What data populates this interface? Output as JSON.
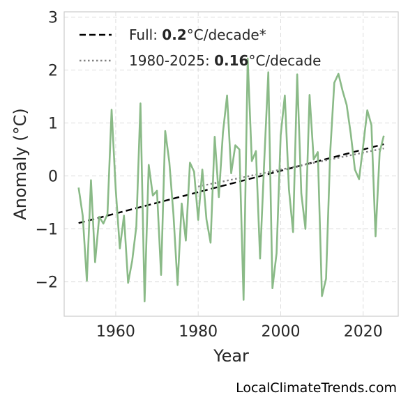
{
  "chart_data": {
    "type": "line",
    "x_range": [
      1951,
      2025
    ],
    "xlim": [
      1947.5,
      2028.5
    ],
    "ylim": [
      -2.65,
      3.1
    ],
    "xticks": [
      1960,
      1980,
      2000,
      2020
    ],
    "yticks": [
      -2,
      -1,
      0,
      1,
      2,
      3
    ],
    "ytick_labels": [
      "−2",
      "−1",
      "0",
      "1",
      "2",
      "3"
    ],
    "xlabel": "Year",
    "ylabel": "Anomaly (°C)",
    "grid": true,
    "legend_position": "top-left",
    "series": [
      {
        "values": [
          -0.22,
          -0.75,
          -1.98,
          -0.08,
          -1.63,
          -0.77,
          -0.9,
          -0.72,
          1.25,
          -0.25,
          -1.37,
          -0.75,
          -2.02,
          -1.6,
          -0.95,
          1.37,
          -2.37,
          0.21,
          -0.37,
          -0.28,
          -1.87,
          0.85,
          0.26,
          -0.73,
          -2.06,
          -0.52,
          -1.22,
          0.25,
          0.08,
          -0.83,
          0.12,
          -0.82,
          -1.26,
          0.74,
          -0.4,
          0.82,
          1.52,
          0.05,
          0.58,
          0.5,
          -2.34,
          2.22,
          0.28,
          0.47,
          -1.56,
          0.26,
          1.96,
          -2.12,
          -1.46,
          0.77,
          1.52,
          -0.25,
          -1.06,
          1.92,
          -0.33,
          -1.0,
          1.53,
          0.31,
          0.45,
          -2.27,
          -1.94,
          0.44,
          1.76,
          1.93,
          1.61,
          1.34,
          0.79,
          0.12,
          -0.06,
          0.57,
          1.24,
          0.96,
          -1.14,
          0.45,
          0.76
        ],
        "color": "#8aba87"
      }
    ],
    "trends": [
      {
        "label_prefix": "Full: ",
        "rate": "0.2",
        "label_suffix": "°C/decade*",
        "x": [
          1951,
          2025
        ],
        "y": [
          -0.89,
          0.6
        ],
        "style": "dashed",
        "color": "#000000"
      },
      {
        "label_prefix": "1980-2025: ",
        "rate": "0.16",
        "label_suffix": "°C/decade",
        "x": [
          1980,
          2025
        ],
        "y": [
          -0.2,
          0.52
        ],
        "style": "dotted",
        "color": "#808080"
      }
    ]
  },
  "credit": "LocalClimateTrends.com"
}
